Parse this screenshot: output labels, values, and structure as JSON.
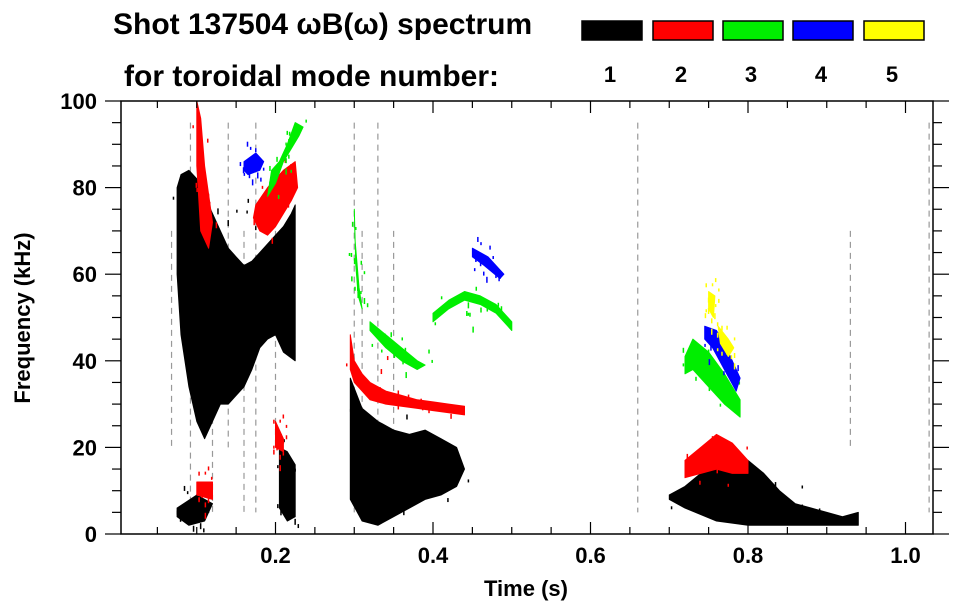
{
  "chart_data": {
    "type": "heatmap",
    "title_line1": "Shot 137504 ωB(ω) spectrum",
    "title_line2": "for toroidal mode number:",
    "xlabel": "Time (s)",
    "ylabel": "Frequency (kHz)",
    "xlim": [
      0.0,
      1.032
    ],
    "ylim": [
      0,
      100
    ],
    "x_ticks": [
      0.2,
      0.4,
      0.6,
      0.8,
      1.0
    ],
    "x_tick_labels": [
      "0.2",
      "0.4",
      "0.6",
      "0.8",
      "1.0"
    ],
    "y_ticks": [
      0,
      20,
      40,
      60,
      80,
      100
    ],
    "y_tick_labels": [
      "0",
      "20",
      "40",
      "60",
      "80",
      "100"
    ],
    "x_minor_step": 0.05,
    "y_minor_step": 5,
    "grid": false,
    "legend": {
      "placement": "top-right",
      "entries": [
        {
          "label": "1",
          "color": "#000000"
        },
        {
          "label": "2",
          "color": "#ff0000"
        },
        {
          "label": "3",
          "color": "#00ee00"
        },
        {
          "label": "4",
          "color": "#0000ff"
        },
        {
          "label": "5",
          "color": "#ffff00"
        }
      ]
    },
    "series": [
      {
        "name": "n=1",
        "color": "#000000",
        "regions": [
          {
            "t": [
              0.075,
              0.08,
              0.09,
              0.1,
              0.11,
              0.12,
              0.13,
              0.14,
              0.15,
              0.16,
              0.17,
              0.18,
              0.19,
              0.2,
              0.21,
              0.22,
              0.225,
              0.225,
              0.21,
              0.2,
              0.19,
              0.18,
              0.17,
              0.16,
              0.15,
              0.14,
              0.13,
              0.12,
              0.11,
              0.1,
              0.09,
              0.08,
              0.075
            ],
            "f": [
              80,
              83,
              84,
              82,
              78,
              74,
              70,
              66,
              64,
              62,
              63,
              65,
              67,
              69,
              71,
              74,
              76,
              40,
              42,
              46,
              45,
              43,
              38,
              34,
              32,
              30,
              30,
              26,
              22,
              26,
              34,
              46,
              60
            ]
          },
          {
            "t": [
              0.205,
              0.215,
              0.225,
              0.225,
              0.215,
              0.205
            ],
            "f": [
              20,
              19,
              16,
              4,
              3,
              6
            ]
          },
          {
            "t": [
              0.295,
              0.31,
              0.33,
              0.35,
              0.37,
              0.39,
              0.41,
              0.43,
              0.44,
              0.43,
              0.41,
              0.39,
              0.37,
              0.35,
              0.33,
              0.31,
              0.295
            ],
            "f": [
              36,
              29,
              26,
              24,
              23,
              24,
              22,
              20,
              15,
              11,
              9,
              8,
              6,
              4,
              2,
              3,
              8
            ]
          },
          {
            "t": [
              0.7,
              0.72,
              0.74,
              0.76,
              0.78,
              0.8,
              0.82,
              0.84,
              0.86,
              0.88,
              0.9,
              0.92,
              0.94,
              0.94,
              0.92,
              0.88,
              0.84,
              0.8,
              0.76,
              0.72,
              0.7
            ],
            "f": [
              9,
              11,
              14,
              19,
              18,
              17,
              14,
              10,
              7,
              6,
              5,
              4,
              5,
              2,
              2,
              2,
              2,
              2,
              3,
              6,
              8
            ]
          },
          {
            "t": [
              0.075,
              0.1,
              0.12,
              0.11,
              0.09,
              0.075
            ],
            "f": [
              6,
              9,
              7,
              3,
              2,
              4
            ]
          }
        ]
      },
      {
        "name": "n=2",
        "color": "#ff0000",
        "regions": [
          {
            "t": [
              0.1,
              0.105,
              0.11,
              0.12,
              0.115,
              0.105,
              0.1
            ],
            "f": [
              100,
              96,
              85,
              72,
              66,
              70,
              85
            ]
          },
          {
            "t": [
              0.175,
              0.19,
              0.2,
              0.21,
              0.225,
              0.228,
              0.22,
              0.21,
              0.2,
              0.19,
              0.18,
              0.172
            ],
            "f": [
              76,
              80,
              82,
              84,
              86,
              80,
              77,
              74,
              71,
              69,
              70,
              73
            ]
          },
          {
            "t": [
              0.295,
              0.3,
              0.31,
              0.32,
              0.34,
              0.36,
              0.38,
              0.4,
              0.42,
              0.44,
              0.44,
              0.42,
              0.4,
              0.38,
              0.36,
              0.34,
              0.32,
              0.31,
              0.3,
              0.295
            ],
            "f": [
              46,
              40,
              37,
              35,
              33,
              32,
              31,
              30.5,
              30,
              29.5,
              27.5,
              28,
              28.5,
              29,
              29.5,
              30,
              31,
              33,
              35,
              38
            ]
          },
          {
            "t": [
              0.72,
              0.74,
              0.76,
              0.78,
              0.8,
              0.8,
              0.78,
              0.76,
              0.74,
              0.72
            ],
            "f": [
              17,
              20,
              23,
              21,
              17,
              14,
              14,
              15,
              14,
              13
            ]
          },
          {
            "t": [
              0.2,
              0.21,
              0.21,
              0.2
            ],
            "f": [
              26,
              22,
              19,
              20
            ]
          },
          {
            "t": [
              0.1,
              0.12,
              0.12,
              0.1
            ],
            "f": [
              12,
              12,
              8,
              9
            ]
          }
        ]
      },
      {
        "name": "n=3",
        "color": "#00ee00",
        "regions": [
          {
            "t": [
              0.195,
              0.205,
              0.215,
              0.225,
              0.235,
              0.23,
              0.22,
              0.21,
              0.2,
              0.19
            ],
            "f": [
              84,
              86,
              90,
              95,
              94,
              92,
              89,
              86,
              81,
              78
            ]
          },
          {
            "t": [
              0.3,
              0.302,
              0.305,
              0.31,
              0.306,
              0.301
            ],
            "f": [
              75,
              62,
              55,
              52,
              57,
              68
            ]
          },
          {
            "t": [
              0.32,
              0.34,
              0.36,
              0.38,
              0.39,
              0.38,
              0.36,
              0.34,
              0.32
            ],
            "f": [
              49,
              46,
              43,
              40,
              39,
              38,
              40,
              43,
              47
            ]
          },
          {
            "t": [
              0.4,
              0.42,
              0.44,
              0.46,
              0.48,
              0.5,
              0.5,
              0.48,
              0.46,
              0.44,
              0.42,
              0.4
            ],
            "f": [
              51,
              54,
              56,
              55,
              53,
              49,
              47,
              51,
              53,
              54,
              52,
              49
            ]
          },
          {
            "t": [
              0.72,
              0.73,
              0.75,
              0.77,
              0.79,
              0.79,
              0.77,
              0.75,
              0.73,
              0.72
            ],
            "f": [
              41,
              45,
              42,
              37,
              31,
              27,
              30,
              34,
              38,
              37
            ]
          }
        ]
      },
      {
        "name": "n=4",
        "color": "#0000ff",
        "regions": [
          {
            "t": [
              0.16,
              0.175,
              0.185,
              0.18,
              0.165,
              0.16
            ],
            "f": [
              86,
              88,
              86,
              84,
              83,
              84
            ]
          },
          {
            "t": [
              0.745,
              0.76,
              0.775,
              0.79,
              0.785,
              0.77,
              0.755,
              0.745
            ],
            "f": [
              48,
              47,
              42,
              36,
              33,
              38,
              43,
              45
            ]
          },
          {
            "t": [
              0.45,
              0.47,
              0.49,
              0.485,
              0.465,
              0.45
            ],
            "f": [
              66,
              64,
              60,
              59,
              62,
              64
            ]
          }
        ]
      },
      {
        "name": "n=5",
        "color": "#ffff00",
        "regions": [
          {
            "t": [
              0.75,
              0.758,
              0.756,
              0.75
            ],
            "f": [
              56,
              55,
              50,
              52
            ]
          },
          {
            "t": [
              0.762,
              0.775,
              0.782,
              0.775,
              0.765
            ],
            "f": [
              48,
              45,
              43,
              41,
              44
            ]
          }
        ]
      }
    ],
    "gray_streaks_t": [
      0.068,
      0.092,
      0.12,
      0.14,
      0.16,
      0.175,
      0.2,
      0.3,
      0.31,
      0.33,
      0.35,
      0.66,
      0.93,
      1.03
    ]
  }
}
